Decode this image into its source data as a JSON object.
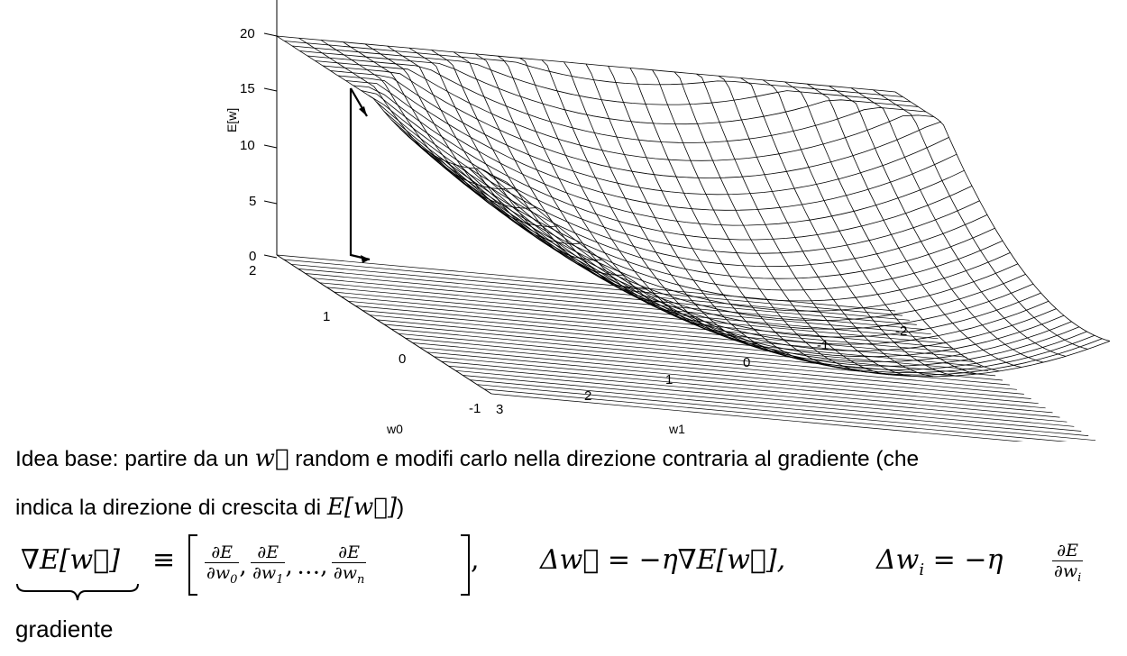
{
  "chart_data": {
    "type": "surface",
    "xlabel": "w0",
    "ylabel": "w1",
    "zlabel": "E[w]",
    "x_ticks": [
      "2",
      "1",
      "0",
      "-1"
    ],
    "y_ticks": [
      "3",
      "2",
      "1",
      "0",
      "-1",
      "-2"
    ],
    "z_ticks": [
      "0",
      "5",
      "10",
      "15",
      "20"
    ],
    "xlim": [
      -1,
      2
    ],
    "ylim": [
      -2,
      3
    ],
    "zlim": [
      0,
      20
    ],
    "grid": false,
    "surface_color": "#000000",
    "gradient_arrow_color": "#000000"
  },
  "text": {
    "line1_a": "Idea base: partire da un ",
    "line1_math": "w⃗",
    "line1_b": " random e modifi carlo nella direzione contraria al gradiente (che",
    "line2_a": "indica la direzione di crescita di ",
    "line2_math": "E[w⃗]",
    "line2_b": ")",
    "grad_label": "gradiente"
  },
  "equation": {
    "lhs": "∇E[w⃗]",
    "equiv": "≡",
    "frac_num": "∂E",
    "d0": "∂w",
    "d0_sub": "0",
    "d1": "∂w",
    "d1_sub": "1",
    "dn": "∂w",
    "dn_sub": "n",
    "ellipsis": "…,",
    "comma": ",",
    "delta_w": "Δw⃗ = −η∇E[w⃗],",
    "delta_wi": "Δw",
    "delta_wi_sub": "i",
    "delta_wi_rhs": " = −η",
    "di": "∂w",
    "di_sub": "i"
  }
}
